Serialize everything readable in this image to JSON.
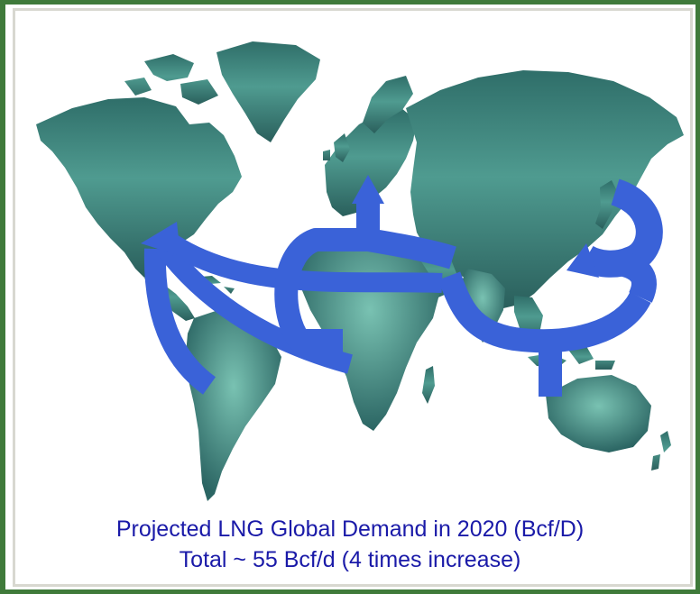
{
  "map": {
    "caption_line1": "Projected LNG Global Demand in 2020 (Bcf/D)",
    "caption_line2": "Total ~ 55 Bcf/d (4 times increase)"
  },
  "colors": {
    "land": "#2e6d6a",
    "land_light": "#6fb6a8",
    "arrow": "#3a62d8",
    "frame": "#3f7a3a",
    "caption": "#1a1aa8"
  }
}
